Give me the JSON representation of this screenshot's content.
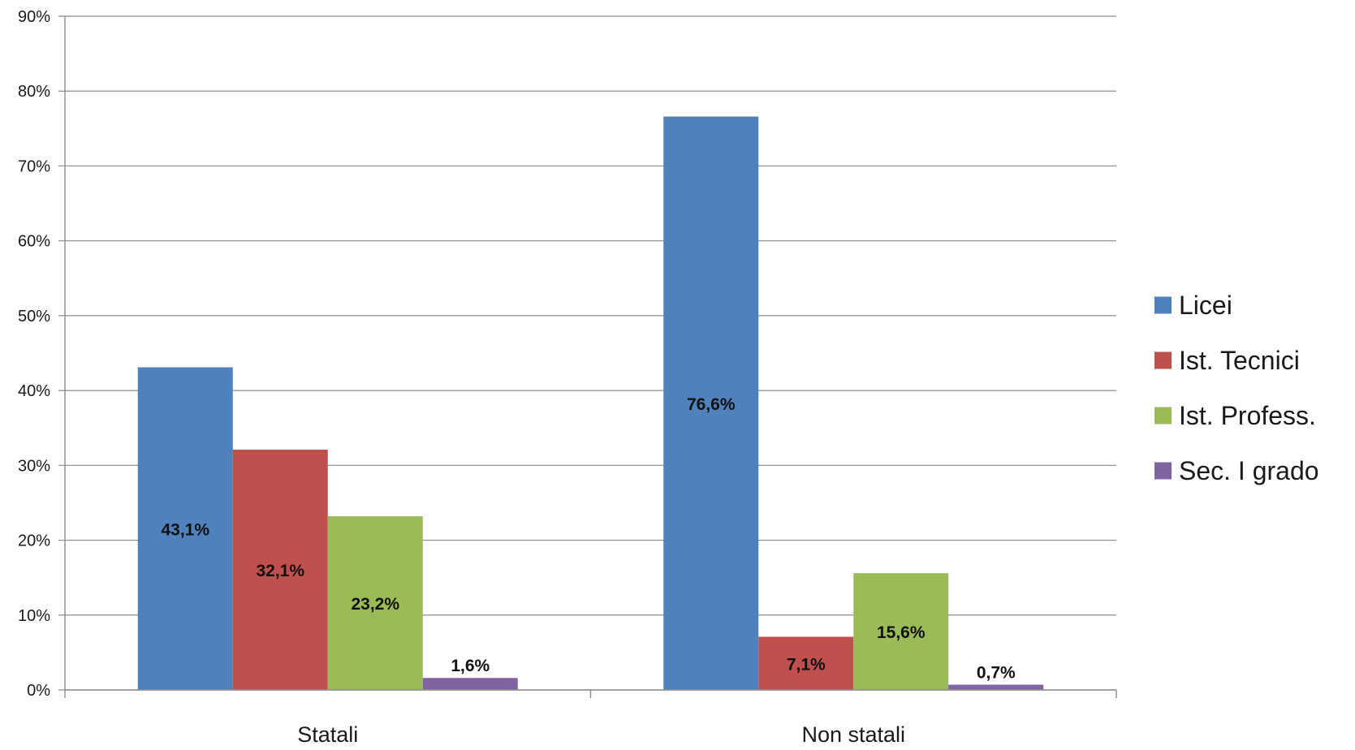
{
  "chart_data": {
    "type": "bar",
    "categories": [
      "Statali",
      "Non statali"
    ],
    "series": [
      {
        "name": "Licei",
        "color": "#4F81BD",
        "values": [
          43.1,
          76.6
        ],
        "labels": [
          "43,1%",
          "76,6%"
        ]
      },
      {
        "name": "Ist. Tecnici",
        "color": "#C0504D",
        "values": [
          32.1,
          7.1
        ],
        "labels": [
          "32,1%",
          "7,1%"
        ]
      },
      {
        "name": "Ist. Profess.",
        "color": "#9BBB59",
        "values": [
          23.2,
          15.6
        ],
        "labels": [
          "23,2%",
          "15,6%"
        ]
      },
      {
        "name": "Sec. I grado",
        "color": "#8064A2",
        "values": [
          1.6,
          0.7
        ],
        "labels": [
          "1,6%",
          "0,7%"
        ]
      }
    ],
    "y_ticks": [
      "0%",
      "10%",
      "20%",
      "30%",
      "40%",
      "50%",
      "60%",
      "70%",
      "80%",
      "90%"
    ],
    "ylim": [
      0,
      90
    ],
    "grid": true,
    "legend_position": "right",
    "title": "",
    "xlabel": "",
    "ylabel": ""
  }
}
